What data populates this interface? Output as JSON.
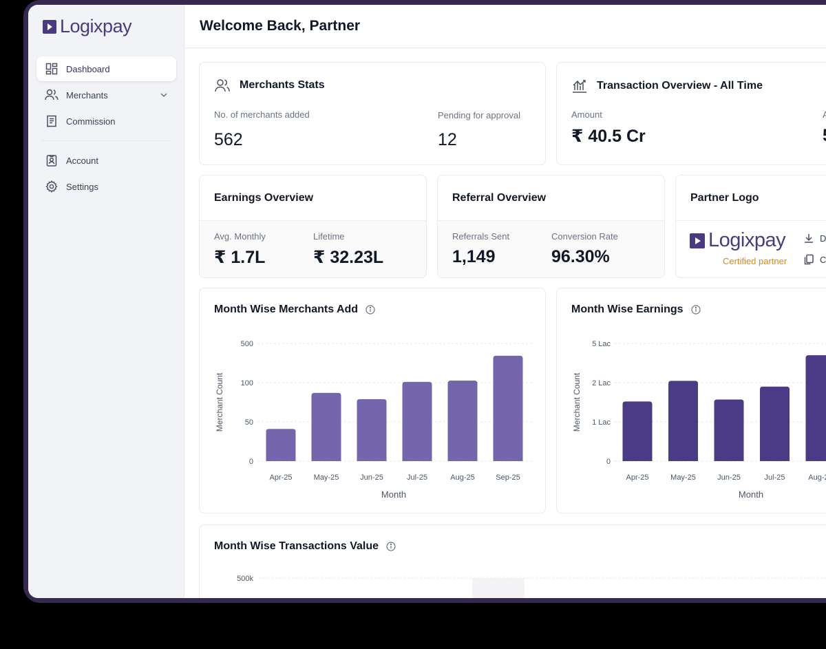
{
  "brand": {
    "name": "Logixpay",
    "accent": "#4a3a7f",
    "bar_light": "#7565ad",
    "bar_dark": "#4b3a86"
  },
  "sidebar": {
    "items": [
      {
        "label": "Dashboard",
        "icon": "dashboard-icon",
        "active": true
      },
      {
        "label": "Merchants",
        "icon": "users-icon",
        "has_chevron": true
      },
      {
        "label": "Commission",
        "icon": "receipt-icon"
      },
      {
        "label": "Account",
        "icon": "id-badge-icon"
      },
      {
        "label": "Settings",
        "icon": "gear-icon"
      }
    ]
  },
  "header": {
    "title": "Welcome Back, Partner"
  },
  "merchants_stats": {
    "title": "Merchants Stats",
    "added_label": "No. of merchants added",
    "added_value": "562",
    "pending_label": "Pending for approval",
    "pending_value": "12"
  },
  "transaction_overview": {
    "title": "Transaction Overview - All Time",
    "amount_label": "Amount",
    "amount_value": "₹ 40.5 Cr",
    "second_label_partial": "A",
    "second_value_partial": "5"
  },
  "earnings_overview": {
    "title": "Earnings Overview",
    "avg_label": "Avg. Monthly",
    "avg_value": "₹ 1.7L",
    "lifetime_label": "Lifetime",
    "lifetime_value": "₹ 32.23L"
  },
  "referral_overview": {
    "title": "Referral Overview",
    "sent_label": "Referrals Sent",
    "sent_value": "1,149",
    "conv_label": "Conversion Rate",
    "conv_value": "96.30%"
  },
  "partner_logo": {
    "title": "Partner Logo",
    "logo_text": "Logixpay",
    "certified": "Certified partner",
    "download_partial": "D",
    "copy_partial": "C"
  },
  "chart_data": [
    {
      "type": "bar",
      "title": "Month Wise Merchants Add",
      "xlabel": "Month",
      "ylabel": "Merchant Count",
      "yticks": [
        "0",
        "50",
        "100",
        "500"
      ],
      "categories": [
        "Apr-25",
        "May-25",
        "Jun-25",
        "Jul-25",
        "Aug-25",
        "Sep-25"
      ],
      "values": [
        41,
        87,
        79,
        108,
        121,
        375
      ],
      "scale": "piecewise",
      "grid": true
    },
    {
      "type": "bar",
      "title": "Month Wise Earnings",
      "xlabel": "Month",
      "ylabel": "Merchant Count",
      "yticks": [
        "0",
        "1 Lac",
        "2 Lac",
        "5 Lac"
      ],
      "categories": [
        "Apr-25",
        "May-25",
        "Jun-25",
        "Jul-25",
        "Aug-25"
      ],
      "values": [
        152000,
        214000,
        157000,
        190000,
        410000
      ],
      "scale": "piecewise",
      "grid": true
    },
    {
      "type": "bar",
      "title": "Month Wise Transactions Value",
      "yticks": [
        "500k"
      ],
      "categories": [],
      "values": []
    }
  ]
}
